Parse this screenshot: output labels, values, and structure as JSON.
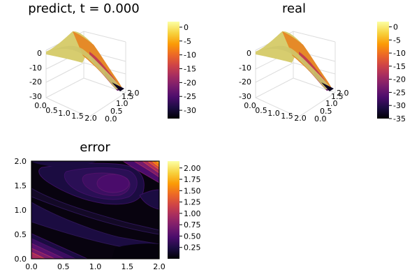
{
  "chart_data": [
    {
      "type": "surface",
      "title": "predict, t = 0.000",
      "x_ticks": [
        "0.0",
        "0.5",
        "1.0",
        "1.5",
        "2.0"
      ],
      "y_ticks": [
        "0.0",
        "0.5",
        "1.0",
        "1.5",
        "2.0"
      ],
      "z_ticks": [
        "0",
        "-10",
        "-20",
        "-30"
      ],
      "xlim": [
        0,
        2
      ],
      "ylim": [
        0,
        2
      ],
      "zlim": [
        -33,
        2
      ],
      "colorbar": {
        "ticks": [
          "0",
          "-5",
          "-10",
          "-15",
          "-20",
          "-25",
          "-30"
        ],
        "range": [
          -33,
          2
        ]
      },
      "colormap": [
        "#000004",
        "#1b0c41",
        "#4a0c6b",
        "#781c6d",
        "#a52c60",
        "#cf4446",
        "#ed6925",
        "#fb9b06",
        "#f7d13d",
        "#fcffa4"
      ],
      "grid": true
    },
    {
      "type": "surface",
      "title": "real",
      "x_ticks": [
        "0.0",
        "0.5",
        "1.0",
        "1.5",
        "2.0"
      ],
      "y_ticks": [
        "0.0",
        "0.5",
        "1.0",
        "1.5",
        "2.0"
      ],
      "z_ticks": [
        "0",
        "-10",
        "-20",
        "-30"
      ],
      "xlim": [
        0,
        2
      ],
      "ylim": [
        0,
        2
      ],
      "zlim": [
        -35,
        2
      ],
      "colorbar": {
        "ticks": [
          "0",
          "-5",
          "-10",
          "-15",
          "-20",
          "-25",
          "-30",
          "-35"
        ],
        "range": [
          -35,
          2
        ]
      },
      "colormap": [
        "#000004",
        "#1b0c41",
        "#4a0c6b",
        "#781c6d",
        "#a52c60",
        "#cf4446",
        "#ed6925",
        "#fb9b06",
        "#f7d13d",
        "#fcffa4"
      ],
      "grid": true
    },
    {
      "type": "contour",
      "title": "error",
      "x": [
        "0.0",
        "0.5",
        "1.0",
        "1.5",
        "2.0"
      ],
      "y": [
        "0.0",
        "0.5",
        "1.0",
        "1.5",
        "2.0"
      ],
      "xlim": [
        0,
        2
      ],
      "ylim": [
        0,
        2
      ],
      "colorbar": {
        "ticks": [
          "0.25",
          "0.50",
          "0.75",
          "1.00",
          "1.25",
          "1.50",
          "1.75",
          "2.00"
        ],
        "range": [
          0,
          2.15
        ]
      },
      "colormap": [
        "#000004",
        "#1b0c41",
        "#4a0c6b",
        "#781c6d",
        "#a52c60",
        "#cf4446",
        "#ed6925",
        "#fb9b06",
        "#f7d13d",
        "#fcffa4"
      ]
    }
  ]
}
